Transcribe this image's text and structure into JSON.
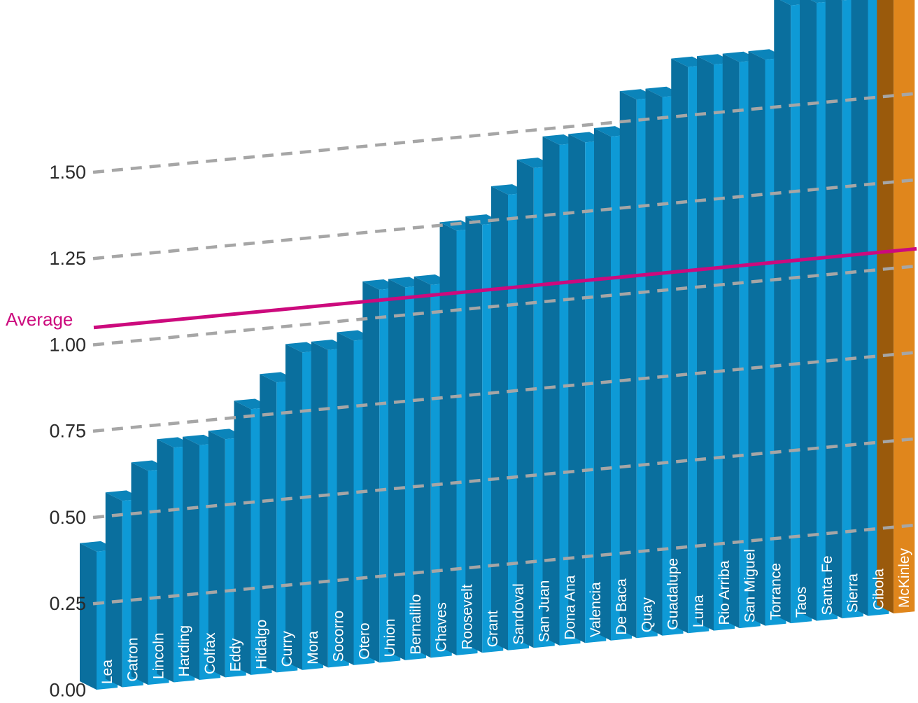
{
  "chart_data": {
    "type": "bar",
    "title": "",
    "xlabel": "",
    "ylabel": "",
    "ylim": [
      0,
      2.0
    ],
    "y_ticks": [
      "0.00",
      "0.25",
      "0.50",
      "0.75",
      "1.00",
      "1.25",
      "1.50"
    ],
    "y_tick_values": [
      0,
      0.25,
      0.5,
      0.75,
      1.0,
      1.25,
      1.5
    ],
    "grid": true,
    "style": "3d-perspective",
    "categories": [
      "Lea",
      "Catron",
      "Lincoln",
      "Harding",
      "Colfax",
      "Eddy",
      "Hidalgo",
      "Curry",
      "Mora",
      "Socorro",
      "Otero",
      "Union",
      "Bernalillo",
      "Chaves",
      "Roosevelt",
      "Grant",
      "Sandoval",
      "San Juan",
      "Dona Ana",
      "Valencia",
      "De Baca",
      "Quay",
      "Guadalupe",
      "Luna",
      "Rio Arriba",
      "San Miguel",
      "Torrance",
      "Taos",
      "Santa Fe",
      "Sierra",
      "Cibola",
      "McKinley"
    ],
    "values": [
      0.4,
      0.54,
      0.62,
      0.68,
      0.68,
      0.69,
      0.77,
      0.84,
      0.92,
      0.92,
      0.94,
      1.08,
      1.08,
      1.08,
      1.23,
      1.24,
      1.32,
      1.39,
      1.45,
      1.45,
      1.46,
      1.56,
      1.56,
      1.64,
      1.64,
      1.64,
      1.64,
      1.79,
      1.79,
      1.79,
      1.85,
      1.9
    ],
    "highlight": "McKinley",
    "average_label": "Average",
    "average_value": 1.05,
    "colors": {
      "bar_front": "#0e9ad6",
      "bar_side": "#0a6f9e",
      "bar_top": "#0b84ba",
      "highlight_front": "#e0861c",
      "highlight_side": "#9a5a0c",
      "highlight_top": "#b86b12",
      "average_line": "#cc0a7d",
      "grid": "#a6a6a6"
    }
  }
}
